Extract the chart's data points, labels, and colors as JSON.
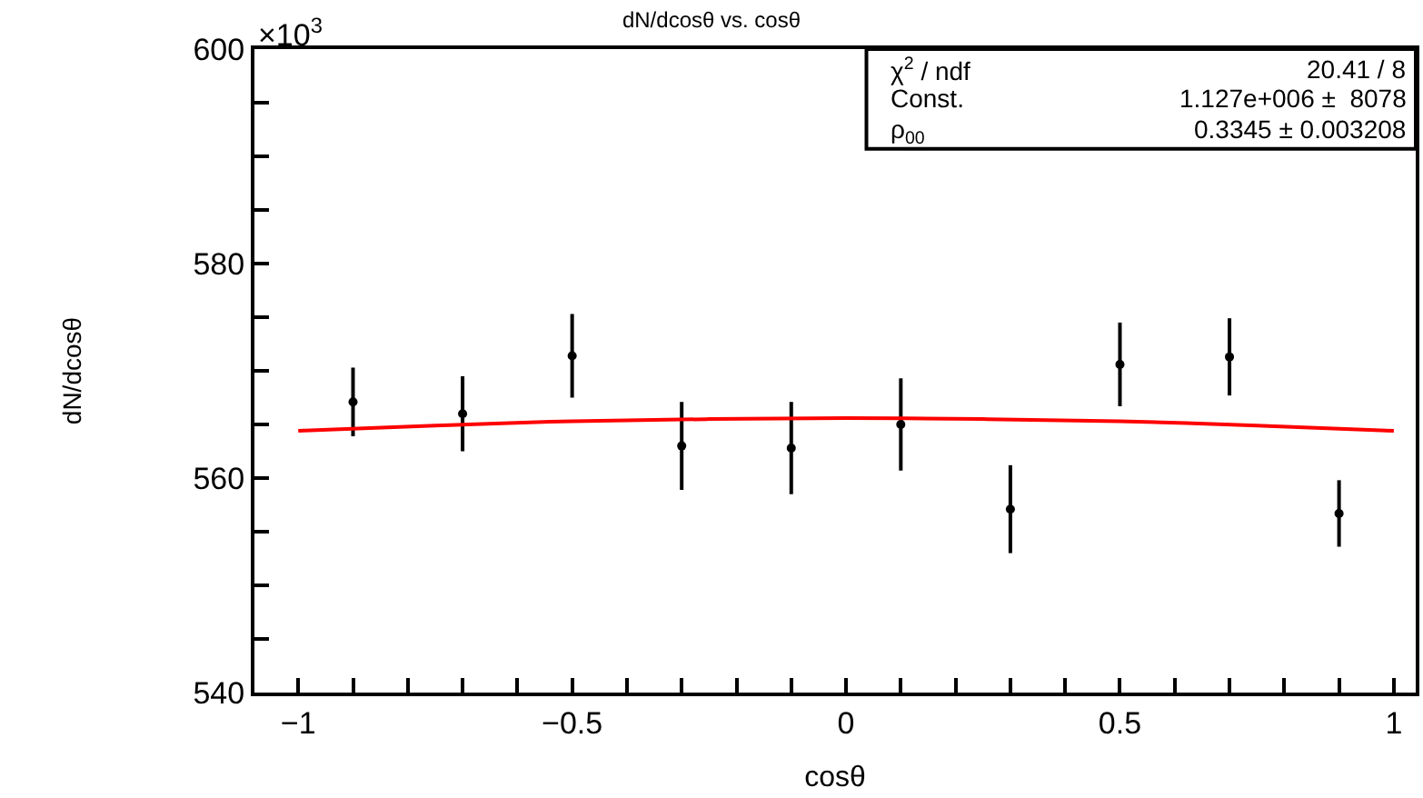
{
  "chart_data": {
    "type": "scatter",
    "title": "dN/dcosθ vs. cosθ",
    "xlabel": "cosθ",
    "ylabel": "dN/dcosθ",
    "annotations": [
      "×10$^{3}$",
      "χ$^{2}$ / ndf",
      "20.41 / 8",
      "Const.",
      "1.127e+006 ±  8078",
      "ρ$_{00}$",
      "0.3345 ± 0.003208"
    ],
    "series": [
      {
        "color": "#000000",
        "marker": "circle",
        "x": [
          -0.9,
          -0.7,
          -0.5,
          -0.3,
          -0.1,
          0.1,
          0.3,
          0.5,
          0.7,
          0.9
        ],
        "values": [
          567.1,
          566.0,
          571.4,
          563.0,
          562.8,
          565.0,
          557.1,
          570.6,
          571.3,
          556.7
        ],
        "errors": [
          3.2,
          3.5,
          3.9,
          4.1,
          4.3,
          4.3,
          4.1,
          3.9,
          3.6,
          3.1
        ]
      },
      {
        "type": "line",
        "color": "#ff0000",
        "marker": "none",
        "x": [
          -1,
          -0.75,
          -0.5,
          -0.25,
          0,
          0.25,
          0.5,
          0.75,
          1
        ],
        "values": [
          564.4,
          564.9,
          565.3,
          565.5,
          565.6,
          565.5,
          565.3,
          564.9,
          564.4
        ]
      }
    ],
    "xlim": [
      -1.08,
      1.04
    ],
    "ylim": [
      540,
      600
    ],
    "xticks": [
      {
        "value": -1,
        "label": "−1"
      },
      {
        "value": -0.9,
        "label": null
      },
      {
        "value": -0.8,
        "label": null
      },
      {
        "value": -0.7,
        "label": null
      },
      {
        "value": -0.6,
        "label": null
      },
      {
        "value": -0.5,
        "label": "−0.5"
      },
      {
        "value": -0.4,
        "label": null
      },
      {
        "value": -0.3,
        "label": null
      },
      {
        "value": -0.2,
        "label": null
      },
      {
        "value": -0.1,
        "label": null
      },
      0,
      {
        "value": 0.1,
        "label": null
      },
      {
        "value": 0.2,
        "label": null
      },
      {
        "value": 0.3,
        "label": null
      },
      {
        "value": 0.4,
        "label": null
      },
      0.5,
      {
        "value": 0.6,
        "label": null
      },
      {
        "value": 0.7,
        "label": null
      },
      {
        "value": 0.8,
        "label": null
      },
      {
        "value": 0.9,
        "label": null
      },
      1
    ],
    "yticks": [
      540,
      {
        "value": 545,
        "label": null
      },
      {
        "value": 550,
        "label": null
      },
      {
        "value": 555,
        "label": null
      },
      560,
      {
        "value": 565,
        "label": null
      },
      {
        "value": 570,
        "label": null
      },
      {
        "value": 575,
        "label": null
      },
      580,
      {
        "value": 585,
        "label": null
      },
      {
        "value": 590,
        "label": null
      },
      {
        "value": 595,
        "label": null
      },
      600
    ]
  }
}
